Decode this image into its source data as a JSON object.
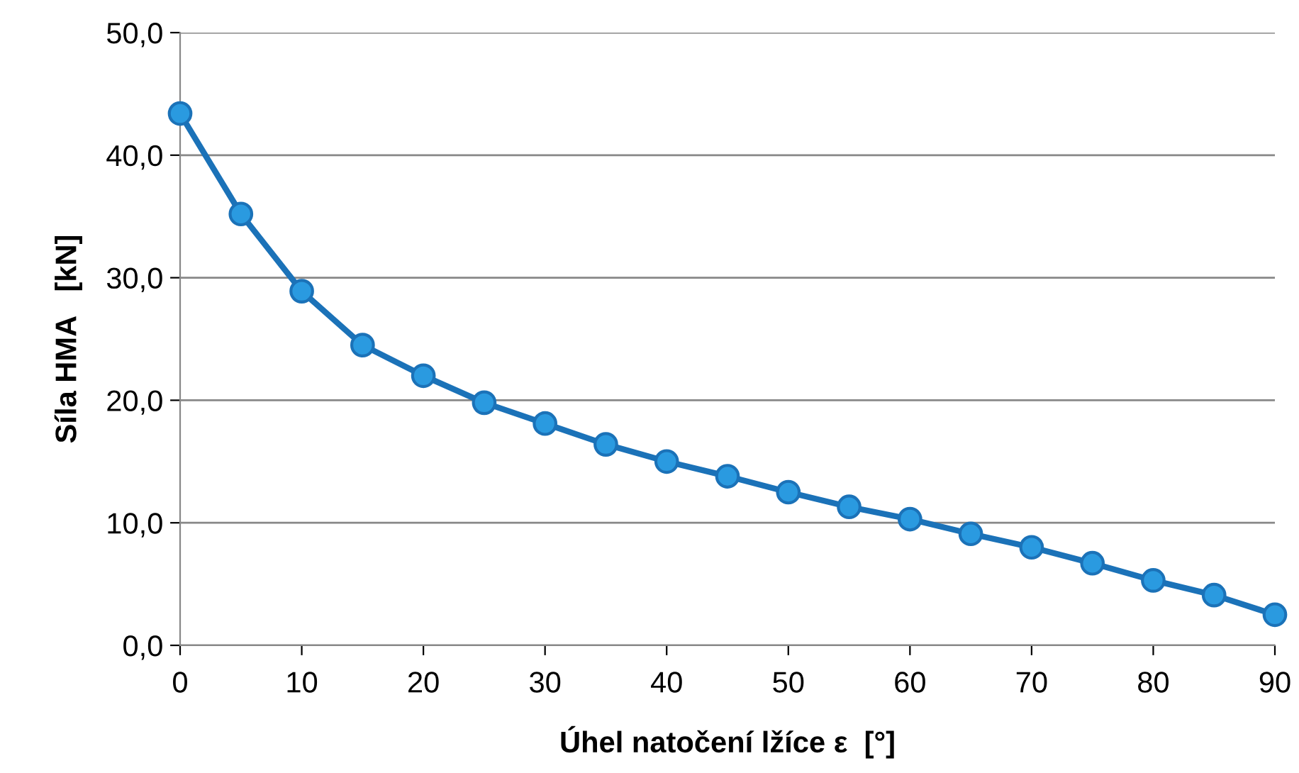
{
  "chart_data": {
    "type": "line",
    "xlabel": "Úhel natočení lžíce ε  [°]",
    "ylabel": "Síla HMA   [kN]",
    "x": [
      0,
      5,
      10,
      15,
      20,
      25,
      30,
      35,
      40,
      45,
      50,
      55,
      60,
      65,
      70,
      75,
      80,
      85,
      90
    ],
    "series": [
      {
        "color": "#1b72b8",
        "values": [
          43.4,
          35.2,
          28.9,
          24.5,
          22.0,
          19.8,
          18.1,
          16.4,
          15.0,
          13.8,
          12.5,
          11.3,
          10.3,
          9.1,
          8.0,
          6.7,
          5.3,
          4.1,
          2.5
        ]
      }
    ],
    "marker": "circle",
    "line_style": "solid",
    "grid": "y",
    "legend": false,
    "xlim": [
      0,
      90
    ],
    "xticks": [
      0,
      10,
      20,
      30,
      40,
      50,
      60,
      70,
      80,
      90
    ],
    "ylim": [
      0,
      50
    ],
    "yticks": [
      {
        "value": 0,
        "label": "0,0"
      },
      {
        "value": 10,
        "label": "10,0"
      },
      {
        "value": 20,
        "label": "20,0"
      },
      {
        "value": 30,
        "label": "30,0"
      },
      {
        "value": 40,
        "label": "40,0"
      },
      {
        "value": 50,
        "label": "50,0"
      }
    ]
  }
}
